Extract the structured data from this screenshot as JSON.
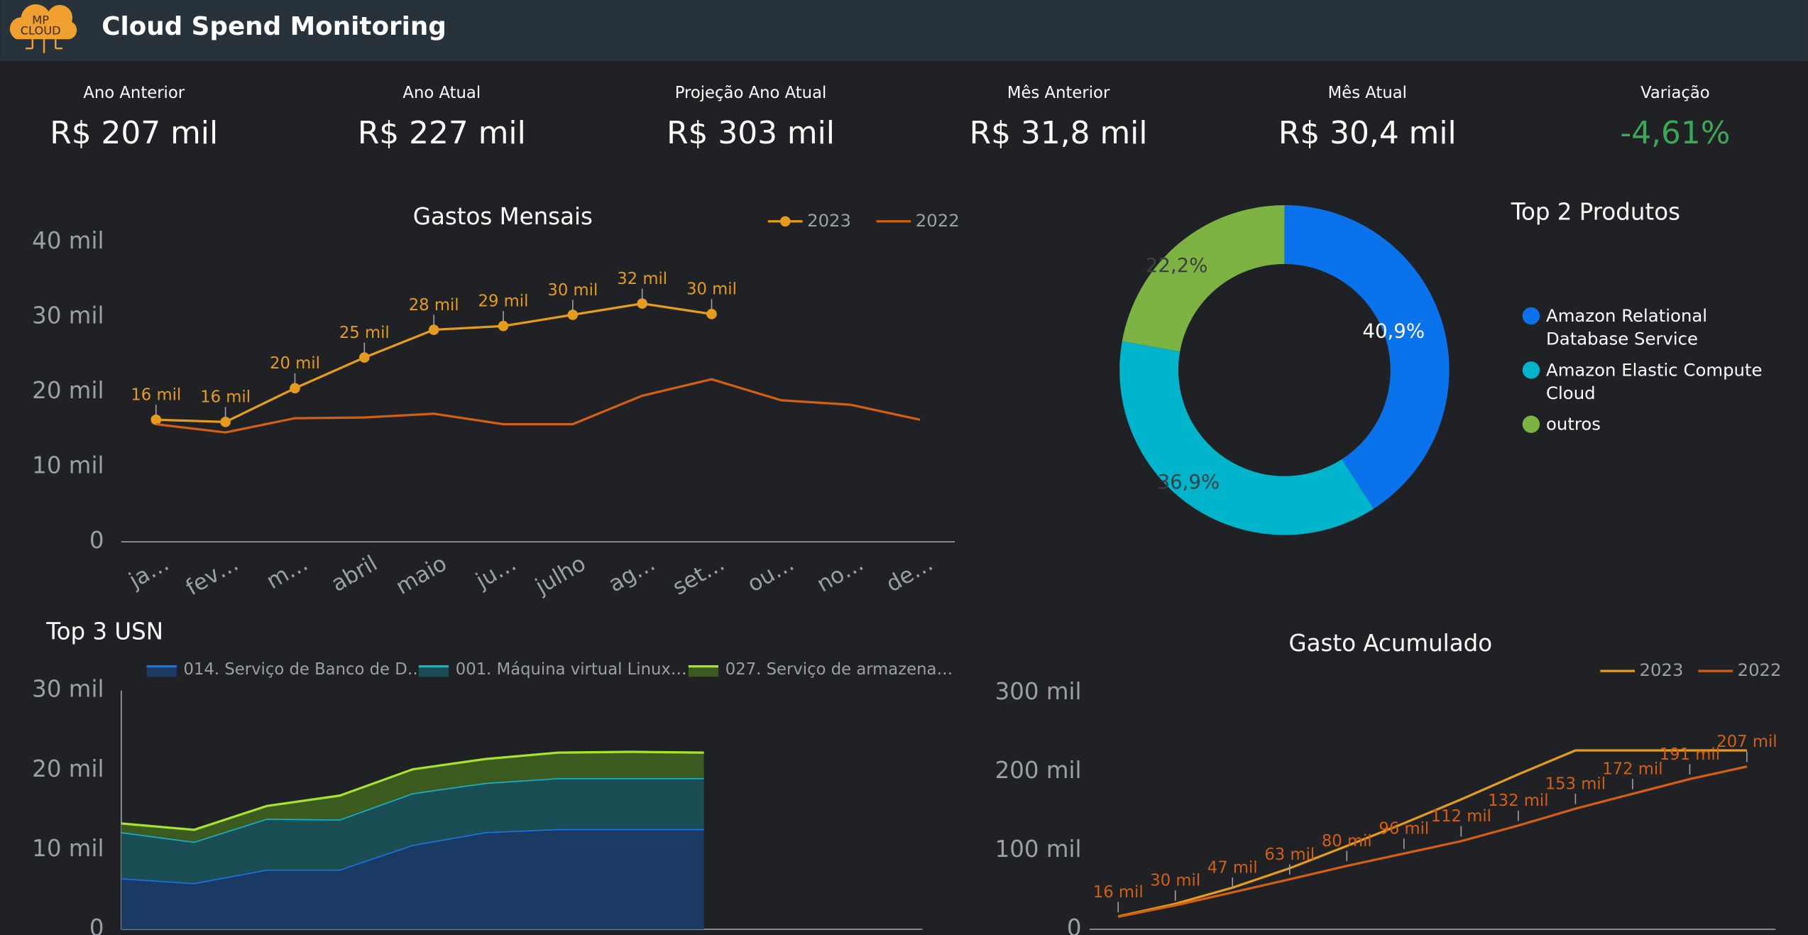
{
  "header": {
    "logo": [
      "MP",
      "CLOUD"
    ],
    "title": "Cloud Spend Monitoring"
  },
  "kpis": [
    {
      "label": "Ano Anterior",
      "value": "R$ 207 mil"
    },
    {
      "label": "Ano Atual",
      "value": "R$ 227 mil"
    },
    {
      "label": "Projeção Ano Atual",
      "value": "R$ 303 mil"
    },
    {
      "label": "Mês Anterior",
      "value": "R$ 31,8 mil"
    },
    {
      "label": "Mês Atual",
      "value": "R$ 30,4 mil"
    },
    {
      "label": "Variação",
      "value": "-4,61%",
      "color": "#3ea657"
    }
  ],
  "chart_data": [
    {
      "type": "line",
      "title": "Gastos Mensais",
      "categories": [
        "ja…",
        "fev…",
        "m…",
        "abril",
        "maio",
        "ju…",
        "julho",
        "ag…",
        "set…",
        "ou…",
        "no…",
        "de…"
      ],
      "series": [
        {
          "name": "2023",
          "color": "#e59c1e",
          "markers": true,
          "values": [
            16300,
            16000,
            20500,
            24600,
            28300,
            28800,
            30300,
            31800,
            30400,
            null,
            null,
            null
          ],
          "value_labels": [
            "16 mil",
            "16 mil",
            "20 mil",
            "25 mil",
            "28 mil",
            "29 mil",
            "30 mil",
            "32 mil",
            "30 mil",
            null,
            null,
            null
          ]
        },
        {
          "name": "2022",
          "color": "#d35f14",
          "markers": false,
          "values": [
            15700,
            14600,
            16500,
            16600,
            17100,
            15700,
            15700,
            19500,
            21700,
            18900,
            18300,
            16300
          ]
        }
      ],
      "ylim": [
        0,
        40000
      ],
      "yticks": [
        0,
        {
          "value": 10000,
          "label": "10 mil"
        },
        {
          "value": 20000,
          "label": "20 mil"
        },
        {
          "value": 30000,
          "label": "30 mil"
        },
        {
          "value": 40000,
          "label": "40 mil"
        }
      ],
      "grid": false,
      "legend": "top-right"
    },
    {
      "type": "donut",
      "title": "Top 2 Produtos",
      "categories": [
        "Amazon Relational Database Service",
        "Amazon Elastic Compute Cloud",
        "outros"
      ],
      "values": [
        40.9,
        36.9,
        22.2
      ],
      "value_labels": [
        "40,9%",
        "36,9%",
        "22,2%"
      ],
      "colors": [
        "#0a73eb",
        "#00b4cc",
        "#7cb342"
      ],
      "legend": "right"
    },
    {
      "type": "area",
      "stacked": true,
      "title": "Top 3 USN",
      "categories": [
        null,
        null,
        null,
        null,
        null,
        null,
        null,
        null,
        null,
        null,
        null,
        null
      ],
      "series": [
        {
          "name": "014. Serviço de Banco de D…",
          "color": "#1a73e8",
          "fill": "#1b3a63",
          "values": [
            6400,
            5800,
            7500,
            7500,
            10600,
            12200,
            12600,
            12600,
            12600,
            null,
            null,
            null
          ]
        },
        {
          "name": "001. Máquina virtual Linux…",
          "color": "#12b5cb",
          "fill": "#1b4d55",
          "values": [
            5800,
            5200,
            6400,
            6300,
            6500,
            6200,
            6400,
            6400,
            6400,
            null,
            null,
            null
          ]
        },
        {
          "name": "027. Serviço de armazena…",
          "color": "#a6e22e",
          "fill": "#3b5a1f",
          "values": [
            1100,
            1500,
            1600,
            3000,
            3000,
            3000,
            3200,
            3300,
            3200,
            null,
            null,
            null
          ]
        }
      ],
      "ylim": [
        0,
        30000
      ],
      "yticks": [
        0,
        {
          "value": 10000,
          "label": "10 mil"
        },
        {
          "value": 20000,
          "label": "20 mil"
        },
        {
          "value": 30000,
          "label": "30 mil"
        }
      ],
      "grid": false,
      "legend": "top"
    },
    {
      "type": "line",
      "title": "Gasto Acumulado",
      "categories": [
        null,
        null,
        null,
        null,
        null,
        null,
        null,
        null,
        null,
        null,
        null,
        null
      ],
      "series": [
        {
          "name": "2023",
          "color": "#e59c1e",
          "markers": false,
          "values": [
            16300,
            32300,
            52800,
            77400,
            105700,
            134500,
            164800,
            196600,
            227000,
            227000,
            227000,
            227000
          ]
        },
        {
          "name": "2022",
          "color": "#d35f14",
          "markers": false,
          "values": [
            15700,
            30300,
            46800,
            63400,
            80400,
            96100,
            111800,
            131600,
            153000,
            171900,
            190600,
            206500
          ],
          "value_labels": [
            "16 mil",
            "30 mil",
            "47 mil",
            "63 mil",
            "80 mil",
            "96 mil",
            "112 mil",
            "132 mil",
            "153 mil",
            "172 mil",
            "191 mil",
            "207 mil"
          ]
        }
      ],
      "ylim": [
        0,
        300000
      ],
      "yticks": [
        0,
        {
          "value": 100000,
          "label": "100 mil"
        },
        {
          "value": 200000,
          "label": "200 mil"
        },
        {
          "value": 300000,
          "label": "300 mil"
        }
      ],
      "grid": false,
      "legend": "top-right"
    }
  ]
}
